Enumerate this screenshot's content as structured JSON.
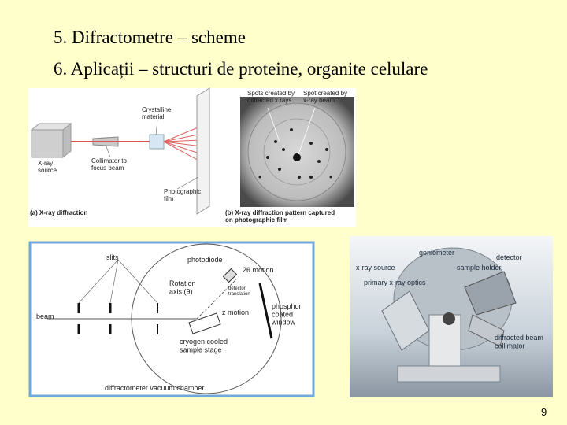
{
  "slide": {
    "lines": [
      "5. Difractometre – scheme",
      "6. Aplicații – structuri de proteine, organite celulare"
    ],
    "page_number": "9"
  },
  "figure_a": {
    "crystalline_material": [
      "Crystalline",
      "material"
    ],
    "x_ray_source": [
      "X-ray",
      "source"
    ],
    "collimator": [
      "Collimator to",
      "focus beam"
    ],
    "photographic_film": [
      "Photographic",
      "film"
    ],
    "caption": "(a) X-ray diffraction"
  },
  "figure_b": {
    "spots_diffracted": [
      "Spots created by",
      "diffracted x rays"
    ],
    "spot_beam": [
      "Spot created by",
      "x-ray beam"
    ],
    "caption": [
      "(b) X-ray diffraction pattern captured",
      "on photographic film"
    ]
  },
  "figure_c": {
    "slits": "slits",
    "photodiode": "photodiode",
    "two_theta": "2θ motion",
    "rotation_axis": [
      "Rotation",
      "axis (θ)"
    ],
    "detector_translation": [
      "detector",
      "translation"
    ],
    "phosphor": [
      "phosphor",
      "coated",
      "window"
    ],
    "beam": "beam",
    "z_motion": "z motion",
    "cryogen": [
      "cryogen cooled",
      "sample stage"
    ],
    "chamber": "diffractometer vacuum chamber"
  },
  "photo": {
    "goniometer": "goniometer",
    "detector": "detector",
    "x_ray_source": "x-ray source",
    "sample_holder": "sample holder",
    "primary_optics": "primary x-ray optics",
    "collimator": [
      "diffracted beam",
      "collimator"
    ]
  }
}
